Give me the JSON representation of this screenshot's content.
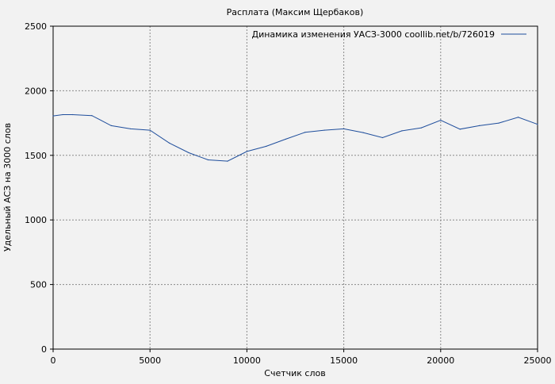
{
  "chart_data": {
    "type": "line",
    "title": "Расплата (Максим Щербаков)",
    "xlabel": "Счетчик слов",
    "ylabel": "Удельный АСЗ на 3000 слов",
    "xlim": [
      0,
      25000
    ],
    "ylim": [
      0,
      2500
    ],
    "xticks": [
      0,
      5000,
      10000,
      15000,
      20000,
      25000
    ],
    "yticks": [
      0,
      500,
      1000,
      1500,
      2000,
      2500
    ],
    "grid": true,
    "legend_position": "top-right",
    "series": [
      {
        "name": "Динамика изменения УАСЗ-3000 coollib.net/b/726019",
        "color": "#1f4e9c",
        "x": [
          0,
          500,
          1000,
          2000,
          3000,
          4000,
          5000,
          6000,
          7000,
          8000,
          9000,
          10000,
          11000,
          12000,
          13000,
          14000,
          15000,
          16000,
          17000,
          18000,
          19000,
          20000,
          21000,
          22000,
          23000,
          24000,
          25000
        ],
        "y": [
          1805,
          1815,
          1815,
          1808,
          1730,
          1705,
          1695,
          1595,
          1520,
          1465,
          1455,
          1530,
          1570,
          1625,
          1678,
          1695,
          1705,
          1676,
          1637,
          1690,
          1713,
          1772,
          1703,
          1730,
          1750,
          1795,
          1740
        ]
      }
    ]
  }
}
